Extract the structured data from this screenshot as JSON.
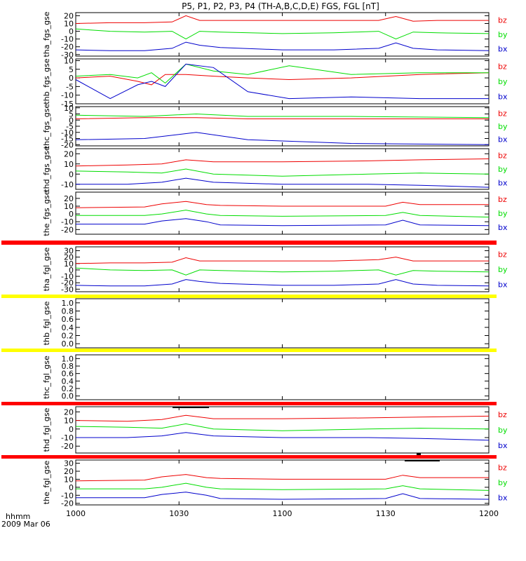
{
  "title": "P5, P1, P2, P3, P4 (TH-A,B,C,D,E) FGS, FGL [nT]",
  "x_axis": {
    "label_line1": "hhmm",
    "label_line2": "2009 Mar 06",
    "ticks": [
      "1000",
      "1030",
      "1100",
      "1130",
      "1200"
    ]
  },
  "colors": {
    "bx": "#0000cc",
    "by": "#00dd00",
    "bz": "#ee0000",
    "bar_red": "#ff0000",
    "bar_yellow": "#ffff00",
    "frame": "#000000"
  },
  "chart_data": [
    {
      "type": "line",
      "ylabel": "tha_fgs_gse",
      "yticks": [
        "20",
        "10",
        "0",
        "-10",
        "-20",
        "-30"
      ],
      "ylim": [
        -32,
        24
      ],
      "legend": [
        "bz",
        "by",
        "bx"
      ],
      "series": [
        {
          "name": "bz",
          "x": [
            0,
            10,
            20,
            28,
            32,
            36,
            42,
            60,
            75,
            88,
            93,
            98,
            105,
            120
          ],
          "y": [
            10,
            11,
            11,
            12,
            20,
            14,
            14,
            14,
            14,
            14,
            19,
            13,
            14,
            14
          ]
        },
        {
          "name": "by",
          "x": [
            0,
            10,
            20,
            28,
            32,
            36,
            42,
            60,
            75,
            88,
            93,
            98,
            105,
            120
          ],
          "y": [
            3,
            0,
            -1,
            0,
            -10,
            0,
            -1,
            -3,
            -2,
            0,
            -10,
            -1,
            -2,
            -3
          ]
        },
        {
          "name": "bx",
          "x": [
            0,
            10,
            20,
            28,
            32,
            36,
            42,
            60,
            75,
            88,
            93,
            98,
            105,
            120
          ],
          "y": [
            -24,
            -25,
            -25,
            -22,
            -14,
            -18,
            -21,
            -24,
            -24,
            -22,
            -15,
            -22,
            -24,
            -25
          ]
        }
      ]
    },
    {
      "type": "line",
      "ylabel": "thb_fgs_gse",
      "yticks": [
        "10",
        "5",
        "0",
        "-5",
        "-10",
        "-15"
      ],
      "ylim": [
        -15,
        11
      ],
      "legend": [
        "bz",
        "by",
        "bx"
      ],
      "series": [
        {
          "name": "bz",
          "x": [
            0,
            10,
            18,
            22,
            26,
            32,
            40,
            50,
            62,
            80,
            100,
            120
          ],
          "y": [
            0,
            1,
            -2,
            -4,
            2,
            2,
            1,
            0,
            -1,
            0,
            2,
            3
          ]
        },
        {
          "name": "by",
          "x": [
            0,
            10,
            18,
            22,
            26,
            32,
            40,
            50,
            62,
            80,
            100,
            120
          ],
          "y": [
            1,
            2,
            0,
            3,
            -3,
            8,
            4,
            2,
            7,
            2,
            3,
            3
          ]
        },
        {
          "name": "bx",
          "x": [
            0,
            10,
            18,
            22,
            26,
            32,
            40,
            50,
            62,
            80,
            100,
            120
          ],
          "y": [
            -1,
            -12,
            -4,
            -2,
            -5,
            8,
            6,
            -8,
            -12,
            -11,
            -12,
            -12
          ]
        }
      ]
    },
    {
      "type": "line",
      "ylabel": "thc_fgs_gse",
      "yticks": [
        "10",
        "5",
        "0",
        "-5",
        "-10",
        "-15",
        "-20"
      ],
      "ylim": [
        -21,
        11
      ],
      "legend": [
        "bz",
        "by",
        "bx"
      ],
      "series": [
        {
          "name": "bz",
          "x": [
            0,
            20,
            35,
            50,
            80,
            120
          ],
          "y": [
            1,
            2,
            2,
            1,
            1,
            1
          ]
        },
        {
          "name": "by",
          "x": [
            0,
            20,
            35,
            50,
            80,
            120
          ],
          "y": [
            4,
            3,
            5,
            3,
            3,
            2
          ]
        },
        {
          "name": "bx",
          "x": [
            0,
            20,
            35,
            50,
            80,
            120
          ],
          "y": [
            -16,
            -15,
            -10,
            -16,
            -19,
            -20
          ]
        }
      ]
    },
    {
      "type": "line",
      "ylabel": "thd_fgs_gse",
      "yticks": [
        "20",
        "10",
        "0",
        "-10"
      ],
      "ylim": [
        -15,
        25
      ],
      "legend": [
        "bz",
        "by",
        "bx"
      ],
      "series": [
        {
          "name": "bz",
          "x": [
            0,
            15,
            25,
            32,
            40,
            60,
            85,
            100,
            120
          ],
          "y": [
            8,
            9,
            10,
            14,
            12,
            12,
            13,
            14,
            15
          ]
        },
        {
          "name": "by",
          "x": [
            0,
            15,
            25,
            32,
            40,
            60,
            85,
            100,
            120
          ],
          "y": [
            3,
            2,
            1,
            5,
            0,
            -2,
            0,
            1,
            0
          ]
        },
        {
          "name": "bx",
          "x": [
            0,
            15,
            25,
            32,
            40,
            60,
            85,
            100,
            120
          ],
          "y": [
            -10,
            -10,
            -8,
            -4,
            -8,
            -10,
            -10,
            -11,
            -13
          ]
        }
      ]
    },
    {
      "type": "line",
      "ylabel": "the_fgs_gse",
      "yticks": [
        "20",
        "10",
        "0",
        "-10",
        "-20"
      ],
      "ylim": [
        -26,
        28
      ],
      "legend": [
        "bz",
        "by",
        "bx"
      ],
      "series": [
        {
          "name": "bz",
          "x": [
            0,
            20,
            25,
            32,
            38,
            42,
            60,
            90,
            95,
            100,
            120
          ],
          "y": [
            8,
            9,
            13,
            16,
            12,
            11,
            10,
            10,
            15,
            12,
            12
          ]
        },
        {
          "name": "by",
          "x": [
            0,
            20,
            25,
            32,
            38,
            42,
            60,
            90,
            95,
            100,
            120
          ],
          "y": [
            -2,
            -2,
            0,
            5,
            0,
            -2,
            -3,
            -2,
            2,
            -2,
            -4
          ]
        },
        {
          "name": "bx",
          "x": [
            0,
            20,
            25,
            32,
            38,
            42,
            60,
            90,
            95,
            100,
            120
          ],
          "y": [
            -13,
            -13,
            -9,
            -6,
            -10,
            -14,
            -15,
            -14,
            -8,
            -14,
            -15
          ]
        }
      ]
    },
    {
      "type": "line",
      "ylabel": "tha_fgl_gse",
      "yticks": [
        "30",
        "20",
        "10",
        "0",
        "-10",
        "-20",
        "-30"
      ],
      "ylim": [
        -34,
        36
      ],
      "legend": [
        "bz",
        "by",
        "bx"
      ],
      "series": [
        {
          "name": "bz",
          "x": [
            0,
            10,
            20,
            28,
            32,
            36,
            42,
            60,
            75,
            88,
            93,
            98,
            105,
            120
          ],
          "y": [
            10,
            11,
            11,
            12,
            19,
            14,
            14,
            14,
            14,
            16,
            20,
            14,
            14,
            14
          ]
        },
        {
          "name": "by",
          "x": [
            0,
            10,
            20,
            28,
            32,
            36,
            42,
            60,
            75,
            88,
            93,
            98,
            105,
            120
          ],
          "y": [
            3,
            0,
            -1,
            0,
            -8,
            0,
            -1,
            -3,
            -2,
            0,
            -8,
            -1,
            -2,
            -3
          ]
        },
        {
          "name": "bx",
          "x": [
            0,
            10,
            20,
            28,
            32,
            36,
            42,
            60,
            75,
            88,
            93,
            98,
            105,
            120
          ],
          "y": [
            -24,
            -25,
            -25,
            -22,
            -15,
            -18,
            -21,
            -24,
            -24,
            -22,
            -15,
            -22,
            -24,
            -25
          ]
        }
      ]
    },
    {
      "type": "line",
      "ylabel": "thb_fgl_gse",
      "yticks": [
        "1.0",
        "0.8",
        "0.6",
        "0.4",
        "0.2",
        "0.0"
      ],
      "ylim": [
        -0.1,
        1.1
      ],
      "series": []
    },
    {
      "type": "line",
      "ylabel": "thc_fgl_gse",
      "yticks": [
        "1.0",
        "0.8",
        "0.6",
        "0.4",
        "0.2",
        "0.0"
      ],
      "ylim": [
        -0.1,
        1.1
      ],
      "series": []
    },
    {
      "type": "line",
      "ylabel": "thd_fgl_gse",
      "yticks": [
        "20",
        "10",
        "0",
        "-10",
        "-20"
      ],
      "ylim": [
        -28,
        26
      ],
      "legend": [
        "bz",
        "by",
        "bx"
      ],
      "series": [
        {
          "name": "bz",
          "x": [
            0,
            15,
            25,
            32,
            40,
            60,
            85,
            100,
            120
          ],
          "y": [
            10,
            9,
            11,
            16,
            12,
            12,
            13,
            14,
            15
          ]
        },
        {
          "name": "by",
          "x": [
            0,
            15,
            25,
            32,
            40,
            60,
            85,
            100,
            120
          ],
          "y": [
            3,
            2,
            1,
            6,
            0,
            -2,
            0,
            1,
            0
          ]
        },
        {
          "name": "bx",
          "x": [
            0,
            15,
            25,
            32,
            40,
            60,
            85,
            100,
            120
          ],
          "y": [
            -10,
            -10,
            -8,
            -4,
            -8,
            -10,
            -10,
            -11,
            -13
          ]
        }
      ]
    },
    {
      "type": "line",
      "ylabel": "the_fgl_gse",
      "yticks": [
        "30",
        "20",
        "10",
        "0",
        "-10",
        "-20"
      ],
      "ylim": [
        -22,
        34
      ],
      "legend": [
        "bz",
        "by",
        "bx"
      ],
      "series": [
        {
          "name": "bz",
          "x": [
            0,
            20,
            25,
            32,
            38,
            42,
            60,
            90,
            95,
            100,
            120
          ],
          "y": [
            8,
            9,
            13,
            16,
            12,
            11,
            10,
            10,
            15,
            12,
            12
          ]
        },
        {
          "name": "by",
          "x": [
            0,
            20,
            25,
            32,
            38,
            42,
            60,
            90,
            95,
            100,
            120
          ],
          "y": [
            -2,
            -2,
            0,
            5,
            0,
            -2,
            -3,
            -2,
            2,
            -2,
            -4
          ]
        },
        {
          "name": "bx",
          "x": [
            0,
            20,
            25,
            32,
            38,
            42,
            60,
            90,
            95,
            100,
            120
          ],
          "y": [
            -13,
            -13,
            -9,
            -6,
            -10,
            -14,
            -15,
            -14,
            -8,
            -14,
            -15
          ]
        }
      ]
    }
  ]
}
